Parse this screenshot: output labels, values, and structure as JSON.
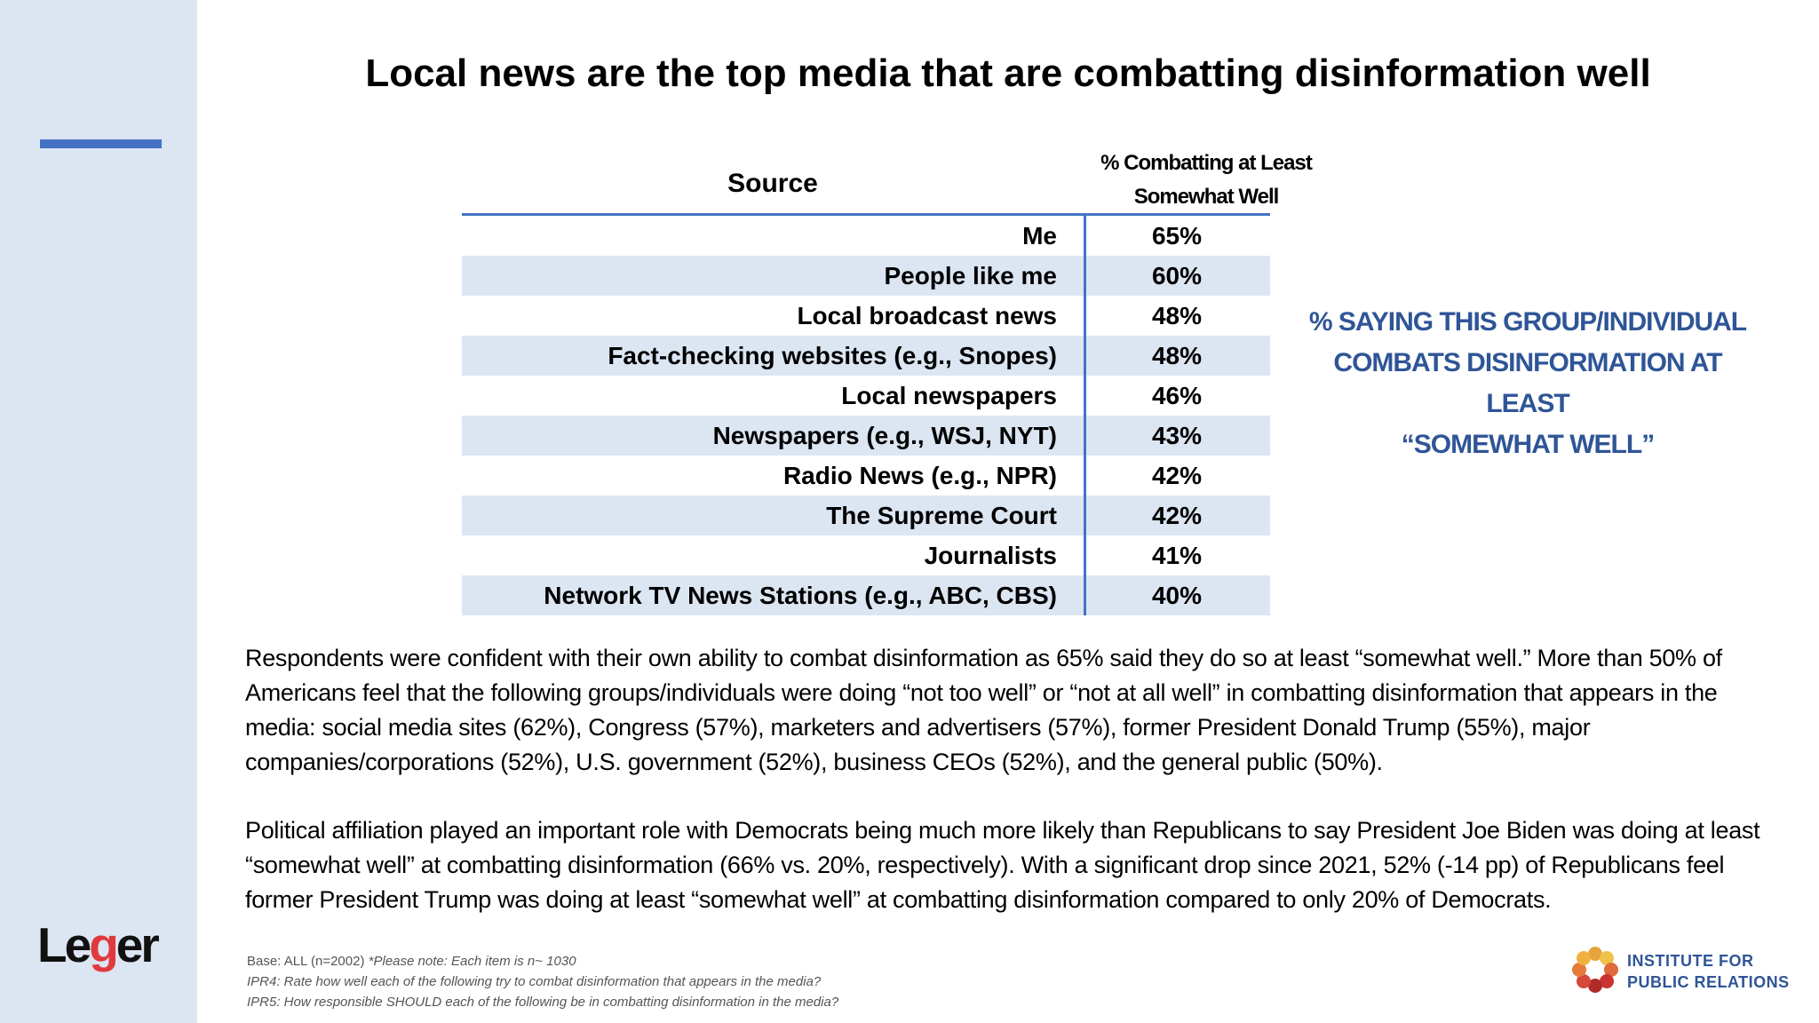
{
  "title": "Local news are the top media that are combatting disinformation well",
  "table": {
    "header_source": "Source",
    "header_value_line1": "% Combatting at Least",
    "header_value_line2": "Somewhat Well"
  },
  "chart_data": {
    "type": "table",
    "columns": [
      "Source",
      "% Combatting at Least Somewhat Well"
    ],
    "rows": [
      {
        "label": "Me",
        "value": "65%"
      },
      {
        "label": "People like me",
        "value": "60%"
      },
      {
        "label": "Local broadcast news",
        "value": "48%"
      },
      {
        "label": "Fact-checking websites (e.g., Snopes)",
        "value": "48%"
      },
      {
        "label": "Local newspapers",
        "value": "46%"
      },
      {
        "label": "Newspapers (e.g., WSJ, NYT)",
        "value": "43%"
      },
      {
        "label": "Radio News (e.g., NPR)",
        "value": "42%"
      },
      {
        "label": "The Supreme Court",
        "value": "42%"
      },
      {
        "label": "Journalists",
        "value": "41%"
      },
      {
        "label": "Network TV News Stations (e.g., ABC, CBS)",
        "value": "40%"
      }
    ]
  },
  "callout": {
    "line1": "% SAYING THIS GROUP/INDIVIDUAL",
    "line2": "COMBATS DISINFORMATION AT LEAST",
    "line3": "“SOMEWHAT WELL”"
  },
  "paragraphs": {
    "p1": "Respondents were confident with their own ability to combat disinformation as 65% said they do so at least “somewhat well.” More than 50% of Americans feel that the following groups/individuals were doing “not too well” or “not at all well” in combatting disinformation that appears in the media: social media sites (62%), Congress (57%), marketers and advertisers (57%), former President Donald Trump (55%), major companies/corporations (52%), U.S. government (52%), business CEOs (52%), and the general public (50%).",
    "p2": "Political affiliation played an important role with Democrats being much more likely than Republicans to say President Joe Biden was doing at least “somewhat well” at combatting disinformation (66% vs. 20%, respectively). With a significant drop since 2021, 52% (-14 pp) of Republicans feel former President Trump was doing at least “somewhat well” at combatting disinformation compared to only 20% of Democrats."
  },
  "footnotes": {
    "base": "Base: ALL (n=2002)",
    "note": "*Please note: Each item is n~ 1030",
    "q1": "IPR4: Rate how well each of the following try to combat disinformation that appears in the media?",
    "q2": "IPR5: How responsible SHOULD each of the following be in combatting disinformation in the media?"
  },
  "logos": {
    "leger_pre": "Le",
    "leger_g": "g",
    "leger_post": "er",
    "ipr_line1": "INSTITUTE FOR",
    "ipr_line2": "PUBLIC RELATIONS"
  },
  "colors": {
    "accent": "#4472c4",
    "row_shade": "#dce5f2",
    "callout": "#2f5597",
    "leger_red": "#e03a3e"
  }
}
